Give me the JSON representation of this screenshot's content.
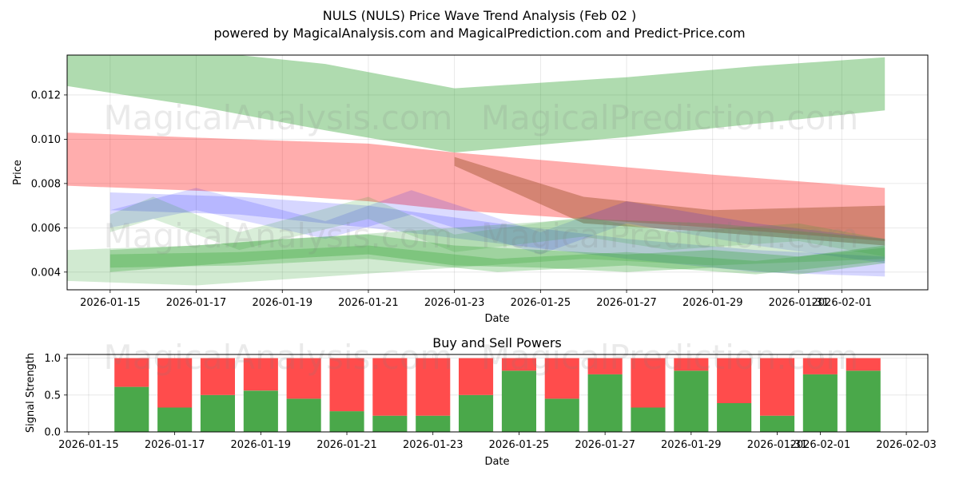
{
  "header": {
    "title": "NULS (NULS) Price Wave Trend Analysis (Feb 02 )",
    "subtitle": "powered by MagicalAnalysis.com and MagicalPrediction.com and Predict-Price.com"
  },
  "watermarks": {
    "analysis": "MagicalAnalysis.com",
    "prediction": "MagicalPrediction.com"
  },
  "colors": {
    "green_band": "#2ca02c",
    "red_band": "#ff0000",
    "blue_band": "#0000ff",
    "brown_band": "#a0522d",
    "buy": "#4aa84a",
    "sell": "#ff4c4c"
  },
  "chart_data": [
    {
      "type": "area",
      "title": "",
      "xlabel": "Date",
      "ylabel": "Price",
      "grid": true,
      "x_tick_labels": [
        "2026-01-15",
        "2026-01-17",
        "2026-01-19",
        "2026-01-21",
        "2026-01-23",
        "2026-01-25",
        "2026-01-27",
        "2026-01-29",
        "2026-01-31",
        "2026-02-01"
      ],
      "y_tick_labels": [
        "0.004",
        "0.006",
        "0.008",
        "0.010",
        "0.012"
      ],
      "y_ticks": [
        0.004,
        0.006,
        0.008,
        0.01,
        0.012
      ],
      "xlim": [
        "2026-01-14T00:00",
        "2026-02-03T00:00"
      ],
      "ylim": [
        0.0032,
        0.0138
      ],
      "series": [
        {
          "name": "green-upper-band",
          "color": "#2ca02c",
          "opacity": 0.38,
          "x": [
            "2026-01-14",
            "2026-01-17",
            "2026-01-20",
            "2026-01-23",
            "2026-01-27",
            "2026-01-30",
            "2026-02-02"
          ],
          "upper": [
            0.014,
            0.014,
            0.0134,
            0.0123,
            0.0128,
            0.0133,
            0.0137
          ],
          "lower": [
            0.0124,
            0.0115,
            0.0104,
            0.0094,
            0.0101,
            0.0107,
            0.0113
          ]
        },
        {
          "name": "red-band",
          "color": "#ff0000",
          "opacity": 0.32,
          "x": [
            "2026-01-14",
            "2026-01-18",
            "2026-01-21",
            "2026-01-23",
            "2026-01-26",
            "2026-01-29",
            "2026-02-02"
          ],
          "upper": [
            0.0103,
            0.01,
            0.0098,
            0.0094,
            0.0089,
            0.0084,
            0.0078
          ],
          "lower": [
            0.0079,
            0.0076,
            0.0072,
            0.0068,
            0.0064,
            0.006,
            0.0054
          ]
        },
        {
          "name": "brown-band",
          "color": "#a0522d",
          "opacity": 0.45,
          "x": [
            "2026-01-23",
            "2026-01-26",
            "2026-01-29",
            "2026-02-02"
          ],
          "upper": [
            0.0092,
            0.0074,
            0.0068,
            0.007
          ],
          "lower": [
            0.0088,
            0.0062,
            0.0058,
            0.0052
          ]
        },
        {
          "name": "blue-band-1",
          "color": "#0000ff",
          "opacity": 0.16,
          "x": [
            "2026-01-15",
            "2026-01-18",
            "2026-01-21",
            "2026-01-24",
            "2026-01-27",
            "2026-01-30",
            "2026-02-02"
          ],
          "upper": [
            0.0076,
            0.0074,
            0.007,
            0.0062,
            0.0055,
            0.005,
            0.0047
          ],
          "lower": [
            0.0068,
            0.0066,
            0.006,
            0.0053,
            0.0046,
            0.004,
            0.0038
          ]
        },
        {
          "name": "blue-band-2",
          "color": "#0000ff",
          "opacity": 0.14,
          "x": [
            "2026-01-15",
            "2026-01-17",
            "2026-01-20",
            "2026-01-22",
            "2026-01-25",
            "2026-01-27",
            "2026-01-30",
            "2026-02-02"
          ],
          "upper": [
            0.0068,
            0.0078,
            0.0063,
            0.0077,
            0.0058,
            0.0072,
            0.0062,
            0.0055
          ],
          "lower": [
            0.006,
            0.0068,
            0.0055,
            0.0066,
            0.0048,
            0.0062,
            0.0052,
            0.0044
          ]
        },
        {
          "name": "green-wave-1",
          "color": "#2ca02c",
          "opacity": 0.18,
          "x": [
            "2026-01-15",
            "2026-01-16",
            "2026-01-18",
            "2026-01-21",
            "2026-01-23",
            "2026-01-26",
            "2026-01-28",
            "2026-01-31",
            "2026-02-02"
          ],
          "upper": [
            0.0066,
            0.0074,
            0.0058,
            0.0074,
            0.0057,
            0.0065,
            0.0058,
            0.0062,
            0.0055
          ],
          "lower": [
            0.0058,
            0.0064,
            0.005,
            0.0064,
            0.0049,
            0.0056,
            0.005,
            0.0054,
            0.0047
          ]
        },
        {
          "name": "green-wave-2",
          "color": "#2ca02c",
          "opacity": 0.22,
          "x": [
            "2026-01-14",
            "2026-01-17",
            "2026-01-20",
            "2026-01-23",
            "2026-01-26",
            "2026-01-29",
            "2026-02-02"
          ],
          "upper": [
            0.005,
            0.0052,
            0.0056,
            0.006,
            0.0064,
            0.0062,
            0.0055
          ],
          "lower": [
            0.0036,
            0.0034,
            0.0038,
            0.0042,
            0.0046,
            0.0043,
            0.0046
          ]
        },
        {
          "name": "green-wave-3",
          "color": "#2ca02c",
          "opacity": 0.3,
          "x": [
            "2026-01-15",
            "2026-01-17",
            "2026-01-19",
            "2026-01-21",
            "2026-01-23",
            "2026-01-25",
            "2026-01-27",
            "2026-01-29",
            "2026-01-31",
            "2026-02-02"
          ],
          "upper": [
            0.005,
            0.0052,
            0.0055,
            0.0057,
            0.0052,
            0.005,
            0.0048,
            0.005,
            0.0047,
            0.0052
          ],
          "lower": [
            0.004,
            0.0043,
            0.0046,
            0.0048,
            0.0043,
            0.0042,
            0.004,
            0.0042,
            0.0039,
            0.0044
          ]
        },
        {
          "name": "green-wave-4",
          "color": "#2ca02c",
          "opacity": 0.28,
          "x": [
            "2026-01-15",
            "2026-01-18",
            "2026-01-21",
            "2026-01-24",
            "2026-01-27",
            "2026-01-30",
            "2026-02-02"
          ],
          "upper": [
            0.0048,
            0.0049,
            0.0052,
            0.0046,
            0.0049,
            0.0045,
            0.0051
          ],
          "lower": [
            0.0042,
            0.0043,
            0.0046,
            0.004,
            0.0043,
            0.0039,
            0.0045
          ]
        }
      ]
    },
    {
      "type": "bar",
      "title": "Buy and Sell Powers",
      "xlabel": "Date",
      "ylabel": "Signal Strength",
      "grid": true,
      "x_tick_labels": [
        "2026-01-15",
        "2026-01-17",
        "2026-01-19",
        "2026-01-21",
        "2026-01-23",
        "2026-01-25",
        "2026-01-27",
        "2026-01-29",
        "2026-01-31",
        "2026-02-01",
        "2026-02-03"
      ],
      "y_tick_labels": [
        "0.0",
        "0.5",
        "1.0"
      ],
      "y_ticks": [
        0,
        0.5,
        1.0
      ],
      "xlim": [
        "2026-01-14T12:00",
        "2026-02-03T12:00"
      ],
      "ylim": [
        0,
        1.05
      ],
      "categories": [
        "2026-01-16",
        "2026-01-17",
        "2026-01-18",
        "2026-01-19",
        "2026-01-20",
        "2026-01-21",
        "2026-01-22",
        "2026-01-23",
        "2026-01-24",
        "2026-01-25",
        "2026-01-26",
        "2026-01-27",
        "2026-01-28",
        "2026-01-29",
        "2026-01-30",
        "2026-01-31",
        "2026-02-01",
        "2026-02-02"
      ],
      "series": [
        {
          "name": "Buy",
          "color": "#4aa84a",
          "values": [
            0.61,
            0.33,
            0.5,
            0.56,
            0.45,
            0.28,
            0.22,
            0.22,
            0.5,
            0.83,
            0.45,
            0.78,
            0.33,
            0.83,
            0.39,
            0.22,
            0.78,
            0.83
          ]
        },
        {
          "name": "Sell",
          "color": "#ff4c4c",
          "values": [
            0.39,
            0.67,
            0.5,
            0.44,
            0.55,
            0.72,
            0.78,
            0.78,
            0.5,
            0.17,
            0.55,
            0.22,
            0.67,
            0.17,
            0.61,
            0.78,
            0.22,
            0.17
          ]
        }
      ]
    }
  ]
}
